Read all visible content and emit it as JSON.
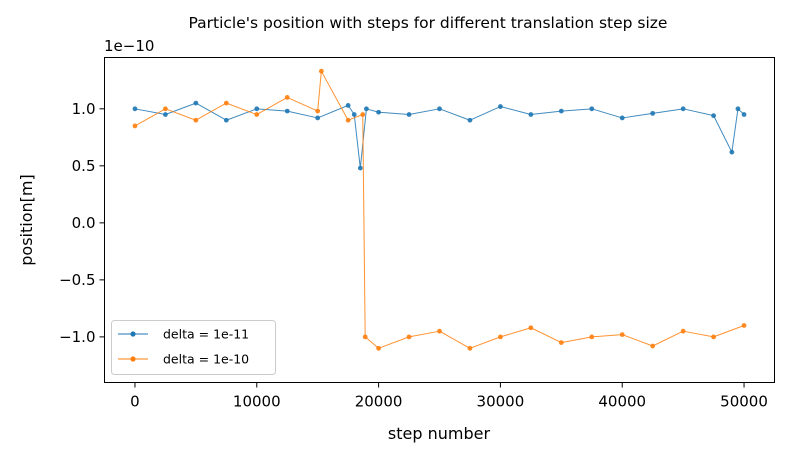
{
  "chart_data": {
    "type": "line",
    "title": "Particle's position with steps for different translation step size",
    "xlabel": "step number",
    "ylabel": "position[m]",
    "y_offset_label": "1e−10",
    "y_scale": 1e-10,
    "xlim": [
      -2500,
      52500
    ],
    "ylim": [
      -1.4,
      1.45
    ],
    "x_ticks": [
      0,
      10000,
      20000,
      30000,
      40000,
      50000
    ],
    "x_tick_labels": [
      "0",
      "10000",
      "20000",
      "30000",
      "40000",
      "50000"
    ],
    "y_ticks": [
      -1.0,
      -0.5,
      0.0,
      0.5,
      1.0
    ],
    "y_tick_labels": [
      "−1.0",
      "−0.5",
      "0.0",
      "0.5",
      "1.0"
    ],
    "grid": false,
    "legend_position": "lower-left",
    "series": [
      {
        "name": "delta = 1e-11",
        "color": "#1f77b4",
        "x": [
          0,
          2500,
          5000,
          7500,
          10000,
          12500,
          15000,
          17500,
          18000,
          18500,
          19000,
          20000,
          22500,
          25000,
          27500,
          30000,
          32500,
          35000,
          37500,
          40000,
          42500,
          45000,
          47500,
          49000,
          49500,
          50000
        ],
        "y": [
          1.0,
          0.95,
          1.05,
          0.9,
          1.0,
          0.98,
          0.92,
          1.03,
          0.95,
          0.48,
          1.0,
          0.97,
          0.95,
          1.0,
          0.9,
          1.02,
          0.95,
          0.98,
          1.0,
          0.92,
          0.96,
          1.0,
          0.94,
          0.62,
          1.0,
          0.95
        ]
      },
      {
        "name": "delta = 1e-10",
        "color": "#ff7f0e",
        "x": [
          0,
          2500,
          5000,
          7500,
          10000,
          12500,
          15000,
          15300,
          17500,
          18700,
          18900,
          20000,
          22500,
          25000,
          27500,
          30000,
          32500,
          35000,
          37500,
          40000,
          42500,
          45000,
          47500,
          50000
        ],
        "y": [
          0.85,
          1.0,
          0.9,
          1.05,
          0.95,
          1.1,
          0.98,
          1.33,
          0.9,
          0.95,
          -1.0,
          -1.1,
          -1.0,
          -0.95,
          -1.1,
          -1.0,
          -0.92,
          -1.05,
          -1.0,
          -0.98,
          -1.08,
          -0.95,
          -1.0,
          -0.9
        ]
      }
    ]
  }
}
